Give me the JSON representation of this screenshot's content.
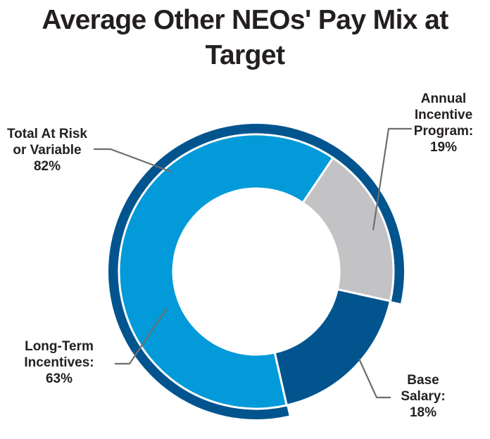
{
  "title": {
    "line1": "Average Other NEOs' Pay Mix at",
    "line2": "Target"
  },
  "colors": {
    "outer_at_risk": "#01548e",
    "base_salary": "#01548e",
    "long_term": "#039ad9",
    "annual_incentive": "#c3c3c5",
    "leader": "#6d6e70",
    "text": "#231f20"
  },
  "labels": {
    "total_at_risk": {
      "line1": "Total At Risk",
      "line2": "or Variable",
      "value": "82%"
    },
    "annual_incentive": {
      "line1": "Annual",
      "line2": "Incentive",
      "line3": "Program:",
      "value": "19%"
    },
    "long_term": {
      "line1": "Long-Term",
      "line2": "Incentives:",
      "value": "63%"
    },
    "base_salary": {
      "line1": "Base",
      "line2": "Salary:",
      "value": "18%"
    }
  },
  "chart_data": [
    {
      "type": "pie",
      "title": "Average Other NEOs' Pay Mix at Target",
      "ring": "outer",
      "categories": [
        "Total At Risk or Variable"
      ],
      "values": [
        82
      ]
    },
    {
      "type": "pie",
      "ring": "inner",
      "categories": [
        "Annual Incentive Program",
        "Base Salary",
        "Long-Term Incentives"
      ],
      "values": [
        19,
        18,
        63
      ]
    }
  ]
}
